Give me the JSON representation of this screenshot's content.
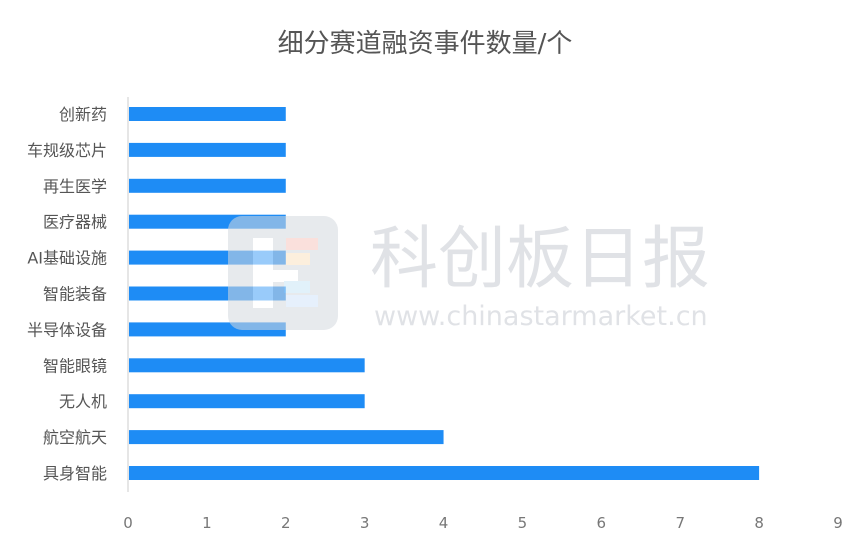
{
  "chart_data": {
    "type": "bar",
    "orientation": "horizontal",
    "title": "细分赛道融资事件数量/个",
    "categories": [
      "创新药",
      "车规级芯片",
      "再生医学",
      "医疗器械",
      "AI基础设施",
      "智能装备",
      "半导体设备",
      "智能眼镜",
      "无人机",
      "航空航天",
      "具身智能"
    ],
    "values": [
      2,
      2,
      2,
      2,
      2,
      2,
      2,
      3,
      3,
      4,
      8
    ],
    "xlim": [
      0,
      9
    ],
    "xticks": [
      "0",
      "1",
      "2",
      "3",
      "4",
      "5",
      "6",
      "7",
      "8",
      "9"
    ],
    "grid": false,
    "bar_color": "#1e8cf5"
  },
  "watermark": {
    "brand": "科创板日报",
    "url": "www.chinastarmarket.cn"
  }
}
